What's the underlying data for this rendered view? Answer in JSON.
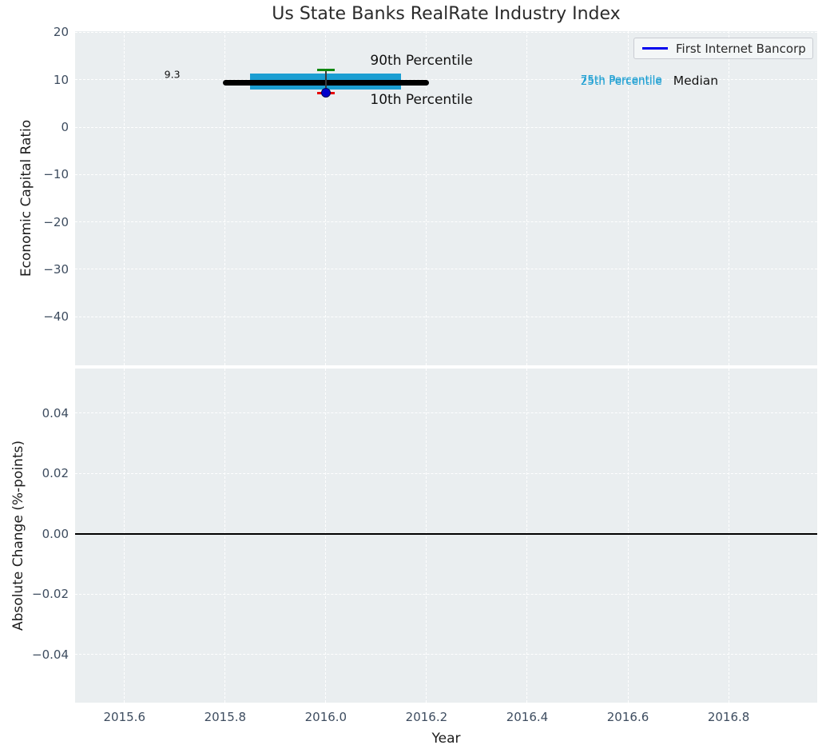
{
  "title": "Us State Banks RealRate Industry Index",
  "legend": {
    "label": "First Internet Bancorp",
    "line_color": "#0000ee"
  },
  "colors": {
    "figure_bg": "#ffffff",
    "axes_bg": "#eaeef0",
    "grid": "#ffffff",
    "tick_label": "#3d4c5f",
    "band": "#1b9ed2",
    "p90_cap": "#108810",
    "p10_cap": "#e60000",
    "median_line": "#000000",
    "company_point": "#0000cc",
    "zero_line": "#000000",
    "title_text": "#2b2b2b"
  },
  "chart_data": [
    {
      "type": "percentile_band_timeseries",
      "title": "Us State Banks RealRate Industry Index",
      "xlabel": "Year",
      "ylabel": "Economic Capital Ratio",
      "xlim": [
        2015.502,
        2016.976
      ],
      "ylim": [
        -50.25,
        20.24
      ],
      "grid": true,
      "legend_position": "upper right",
      "xticks": {
        "values": [
          2015.6,
          2015.8,
          2016.0,
          2016.2,
          2016.4,
          2016.6,
          2016.8
        ],
        "labels": [
          "2015.6",
          "2015.8",
          "2016.0",
          "2016.2",
          "2016.4",
          "2016.6",
          "2016.8"
        ]
      },
      "yticks": {
        "values": [
          20,
          10,
          0,
          -10,
          -20,
          -30,
          -40
        ],
        "labels": [
          "20",
          "10",
          "0",
          "−10",
          "−20",
          "−30",
          "−40"
        ]
      },
      "point": {
        "x": 2016.0,
        "median": 9.3,
        "median_label": "9.3",
        "median_span": [
          2015.8,
          2016.2
        ],
        "p25": 8.0,
        "p75": 11.3,
        "band_span": [
          2015.85,
          2016.15
        ],
        "p10": 7.2,
        "p90": 12.1,
        "company_value": 7.3
      },
      "annotations": [
        {
          "name": "p90-label",
          "text": "90th Percentile",
          "x": 2016.19,
          "y": 14.0,
          "size": 17,
          "color": "#111111",
          "anchor": "middle"
        },
        {
          "name": "p10-label",
          "text": "10th Percentile",
          "x": 2016.19,
          "y": 5.8,
          "size": 17,
          "color": "#111111",
          "anchor": "middle"
        },
        {
          "name": "median-value-label",
          "text": "9.3",
          "x": 2015.695,
          "y": 11.1,
          "size": 12.5,
          "color": "#111111",
          "anchor": "middle"
        },
        {
          "name": "p75-label",
          "text": "75th Percentile",
          "x": 2016.506,
          "y": 9.95,
          "size": 13.5,
          "color": "#1b9ed2",
          "anchor": "start"
        },
        {
          "name": "p25-label",
          "text": "25th Percentile",
          "x": 2016.506,
          "y": 9.65,
          "size": 13.5,
          "color": "#1b9ed2",
          "anchor": "start"
        },
        {
          "name": "median-label",
          "text": "Median",
          "x": 2016.69,
          "y": 9.85,
          "size": 15.5,
          "color": "#141414",
          "anchor": "start"
        }
      ]
    },
    {
      "type": "line",
      "xlabel": "Year",
      "ylabel": "Absolute Change (%-points)",
      "xlim": [
        2015.502,
        2016.976
      ],
      "ylim": [
        -0.0559,
        0.0548
      ],
      "grid": true,
      "zero_line": 0.0,
      "xticks": {
        "values": [
          2015.6,
          2015.8,
          2016.0,
          2016.2,
          2016.4,
          2016.6,
          2016.8
        ],
        "labels": [
          "2015.6",
          "2015.8",
          "2016.0",
          "2016.2",
          "2016.4",
          "2016.6",
          "2016.8"
        ]
      },
      "yticks": {
        "values": [
          0.04,
          0.02,
          0.0,
          -0.02,
          -0.04
        ],
        "labels": [
          "0.04",
          "0.02",
          "0.00",
          "−0.02",
          "−0.04"
        ]
      },
      "series": []
    }
  ]
}
